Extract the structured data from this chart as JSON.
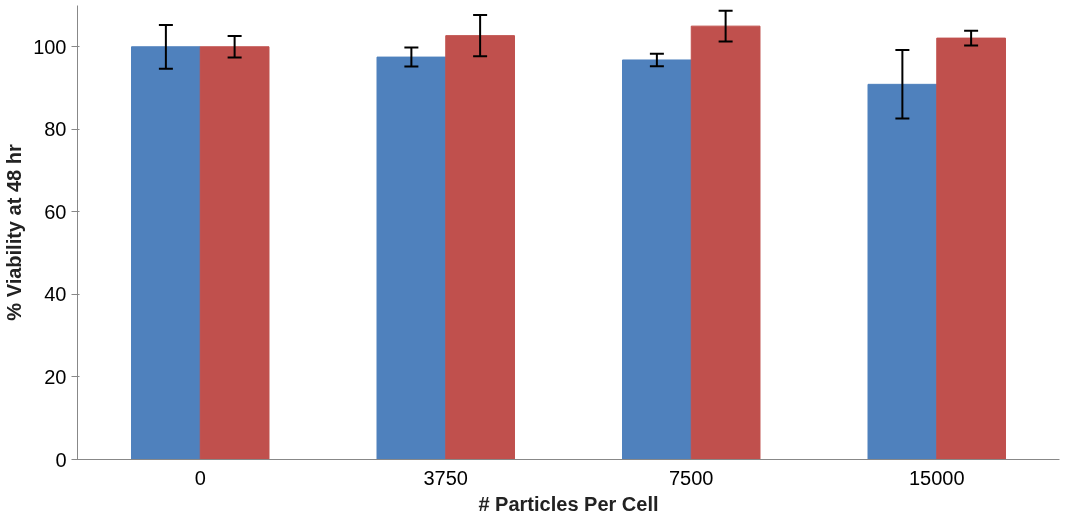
{
  "chart_data": {
    "type": "bar",
    "xlabel": "# Particles Per Cell",
    "ylabel": "% Viability at 48 hr",
    "categories": [
      "0",
      "3750",
      "7500",
      "15000"
    ],
    "series": [
      {
        "color": "#4f81bd",
        "values": [
          100,
          97.5,
          96.8,
          90.9
        ],
        "errors": [
          5.3,
          2.3,
          1.5,
          8.3
        ]
      },
      {
        "color": "#c0504d",
        "values": [
          100,
          102.7,
          105,
          102.1
        ],
        "errors": [
          2.6,
          5,
          3.7,
          1.8
        ]
      }
    ],
    "ylim": [
      0,
      110
    ],
    "yticks": [
      0,
      20,
      40,
      60,
      80,
      100
    ],
    "grid": false
  }
}
